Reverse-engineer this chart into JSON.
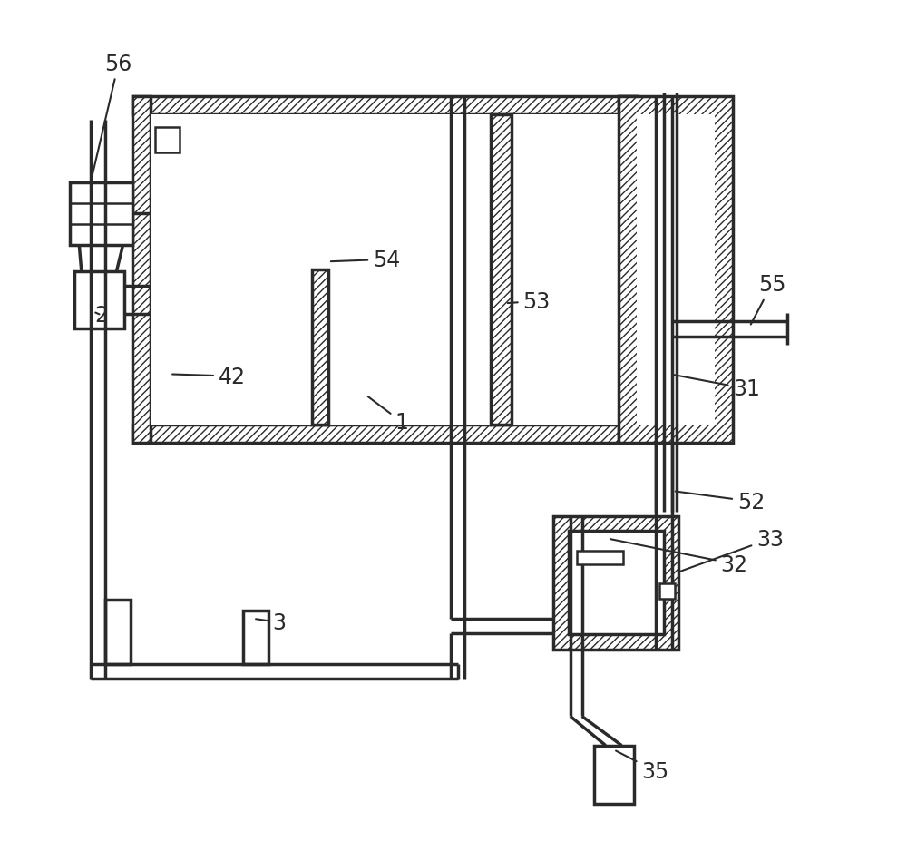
{
  "bg_color": "#ffffff",
  "lc": "#2a2a2a",
  "lw": 2.5,
  "tlw": 1.8,
  "fs": 17,
  "hatch": "////",
  "wall_t": 0.022
}
